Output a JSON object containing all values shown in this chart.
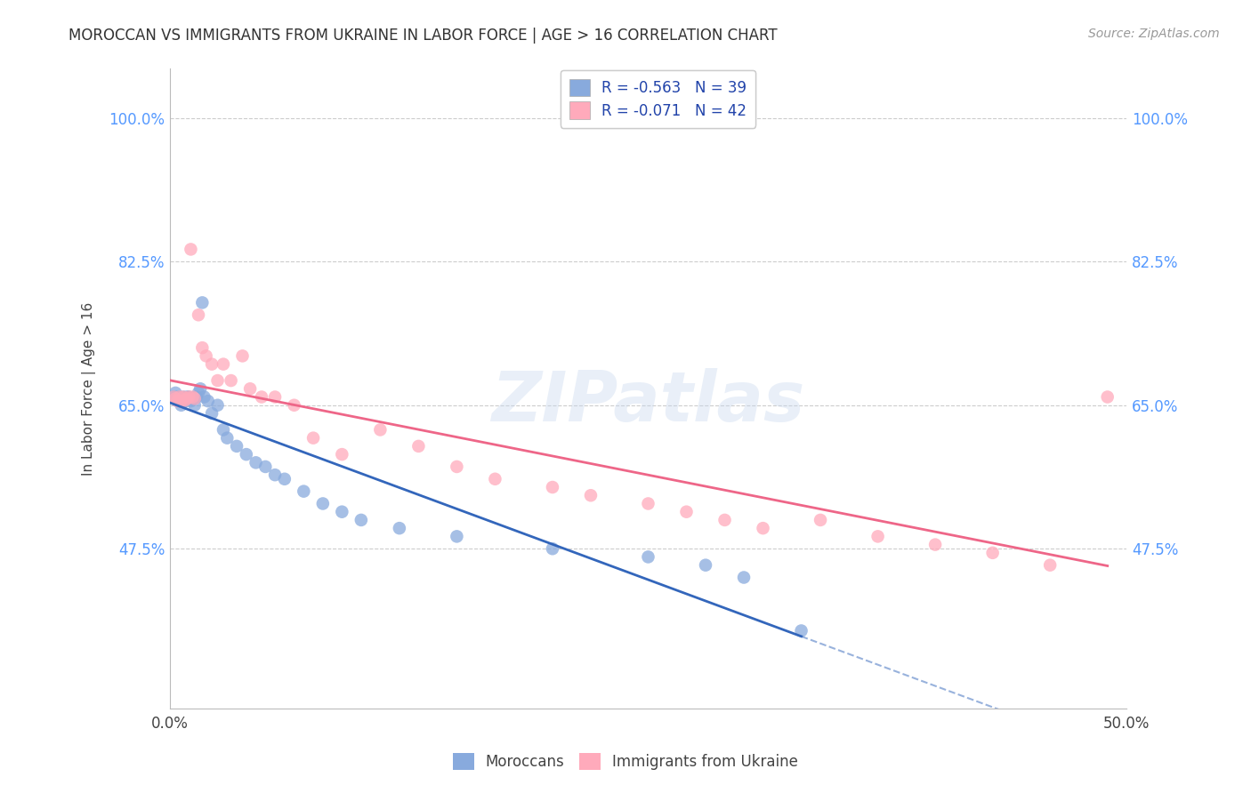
{
  "title": "MOROCCAN VS IMMIGRANTS FROM UKRAINE IN LABOR FORCE | AGE > 16 CORRELATION CHART",
  "source": "Source: ZipAtlas.com",
  "ylabel": "In Labor Force | Age > 16",
  "xlim": [
    0.0,
    0.5
  ],
  "ylim": [
    0.28,
    1.06
  ],
  "ytick_positions": [
    1.0,
    0.825,
    0.65,
    0.475
  ],
  "ytick_labels": [
    "100.0%",
    "82.5%",
    "65.0%",
    "47.5%"
  ],
  "grid_color": "#cccccc",
  "background_color": "#ffffff",
  "blue_color": "#88aadd",
  "pink_color": "#ffaabb",
  "blue_line_color": "#3366bb",
  "pink_line_color": "#ee6688",
  "legend_r1": "R = -0.563",
  "legend_n1": "N = 39",
  "legend_r2": "R = -0.071",
  "legend_n2": "N = 42",
  "watermark": "ZIPatlas",
  "moroccan_x": [
    0.002,
    0.003,
    0.004,
    0.005,
    0.006,
    0.007,
    0.008,
    0.009,
    0.01,
    0.011,
    0.012,
    0.013,
    0.014,
    0.015,
    0.016,
    0.017,
    0.018,
    0.02,
    0.022,
    0.025,
    0.028,
    0.03,
    0.035,
    0.04,
    0.045,
    0.05,
    0.055,
    0.06,
    0.07,
    0.08,
    0.09,
    0.1,
    0.12,
    0.15,
    0.2,
    0.25,
    0.28,
    0.3,
    0.33
  ],
  "moroccan_y": [
    0.66,
    0.665,
    0.66,
    0.655,
    0.65,
    0.66,
    0.655,
    0.66,
    0.66,
    0.655,
    0.658,
    0.65,
    0.66,
    0.665,
    0.67,
    0.775,
    0.66,
    0.655,
    0.64,
    0.65,
    0.62,
    0.61,
    0.6,
    0.59,
    0.58,
    0.575,
    0.565,
    0.56,
    0.545,
    0.53,
    0.52,
    0.51,
    0.5,
    0.49,
    0.475,
    0.465,
    0.455,
    0.44,
    0.375
  ],
  "ukraine_x": [
    0.002,
    0.003,
    0.004,
    0.005,
    0.006,
    0.007,
    0.008,
    0.009,
    0.01,
    0.011,
    0.012,
    0.013,
    0.015,
    0.017,
    0.019,
    0.022,
    0.025,
    0.028,
    0.032,
    0.038,
    0.042,
    0.048,
    0.055,
    0.065,
    0.075,
    0.09,
    0.11,
    0.13,
    0.15,
    0.17,
    0.2,
    0.22,
    0.25,
    0.27,
    0.29,
    0.31,
    0.34,
    0.37,
    0.4,
    0.43,
    0.46,
    0.49
  ],
  "ukraine_y": [
    0.66,
    0.658,
    0.655,
    0.66,
    0.655,
    0.66,
    0.656,
    0.658,
    0.66,
    0.84,
    0.66,
    0.658,
    0.76,
    0.72,
    0.71,
    0.7,
    0.68,
    0.7,
    0.68,
    0.71,
    0.67,
    0.66,
    0.66,
    0.65,
    0.61,
    0.59,
    0.62,
    0.6,
    0.575,
    0.56,
    0.55,
    0.54,
    0.53,
    0.52,
    0.51,
    0.5,
    0.51,
    0.49,
    0.48,
    0.47,
    0.455,
    0.66
  ]
}
